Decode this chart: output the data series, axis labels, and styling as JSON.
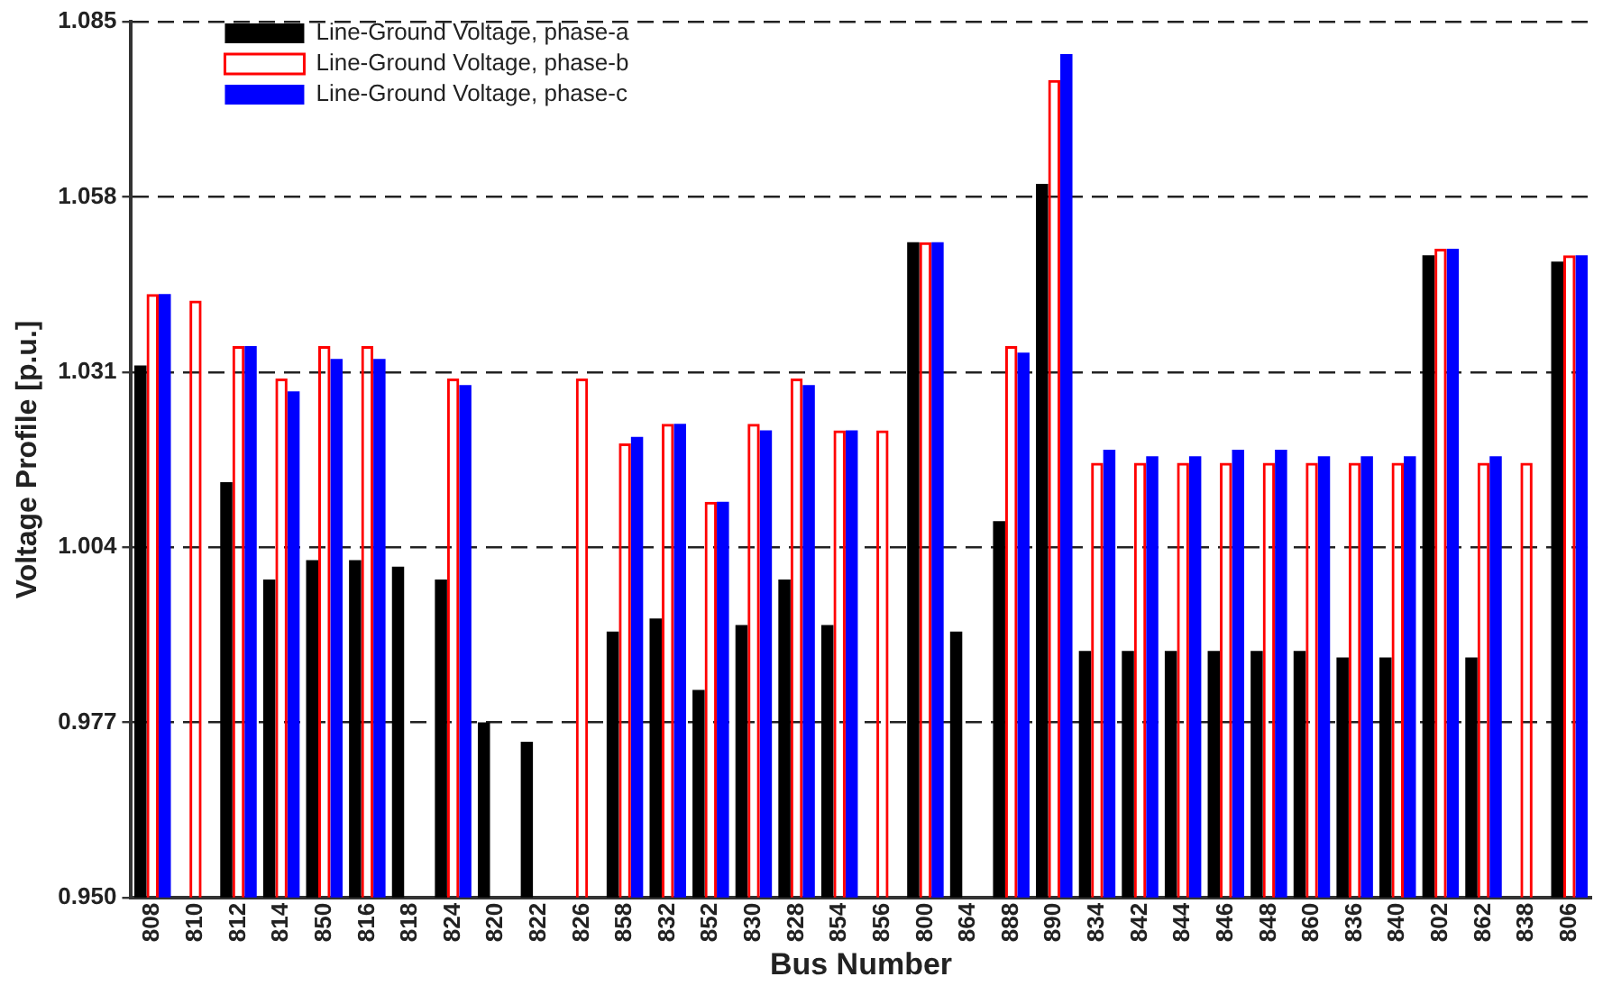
{
  "chart_data": {
    "type": "bar",
    "xlabel": "Bus Number",
    "ylabel": "Voltage Profile [p.u.]",
    "categories": [
      "808",
      "810",
      "812",
      "814",
      "850",
      "816",
      "818",
      "824",
      "820",
      "822",
      "826",
      "858",
      "832",
      "852",
      "830",
      "828",
      "854",
      "856",
      "800",
      "864",
      "888",
      "890",
      "834",
      "842",
      "844",
      "846",
      "848",
      "860",
      "836",
      "840",
      "802",
      "862",
      "838",
      "806"
    ],
    "series": [
      {
        "name": "Line-Ground Voltage, phase-a",
        "color": "#000000",
        "values": [
          1.032,
          null,
          1.014,
          0.999,
          1.002,
          1.002,
          1.001,
          0.999,
          0.977,
          0.974,
          null,
          0.991,
          0.993,
          0.982,
          0.992,
          0.999,
          0.992,
          null,
          1.051,
          0.991,
          1.008,
          1.06,
          0.988,
          0.988,
          0.988,
          0.988,
          0.988,
          0.988,
          0.987,
          0.987,
          1.049,
          0.987,
          null,
          1.048
        ]
      },
      {
        "name": "Line-Ground Voltage, phase-b",
        "color": "#ff0000",
        "values": [
          1.043,
          1.042,
          1.035,
          1.03,
          1.035,
          1.035,
          null,
          1.03,
          null,
          null,
          1.03,
          1.02,
          1.023,
          1.011,
          1.023,
          1.03,
          1.022,
          1.022,
          1.051,
          null,
          1.035,
          1.076,
          1.017,
          1.017,
          1.017,
          1.017,
          1.017,
          1.017,
          1.017,
          1.017,
          1.05,
          1.017,
          1.017,
          1.049
        ]
      },
      {
        "name": "Line-Ground Voltage, phase-c",
        "color": "#0000ff",
        "values": [
          1.043,
          null,
          1.035,
          1.028,
          1.033,
          1.033,
          null,
          1.029,
          null,
          null,
          null,
          1.021,
          1.023,
          1.011,
          1.022,
          1.029,
          1.022,
          null,
          1.051,
          null,
          1.034,
          1.08,
          1.019,
          1.018,
          1.018,
          1.019,
          1.019,
          1.018,
          1.018,
          1.018,
          1.05,
          1.018,
          null,
          1.049
        ]
      }
    ],
    "ylim": [
      0.95,
      1.085
    ],
    "yticks": [
      {
        "value": 0.95,
        "label": "0.950"
      },
      0.977,
      1.004,
      1.031,
      1.058,
      1.085
    ],
    "grid": "y",
    "legend": "top left"
  }
}
